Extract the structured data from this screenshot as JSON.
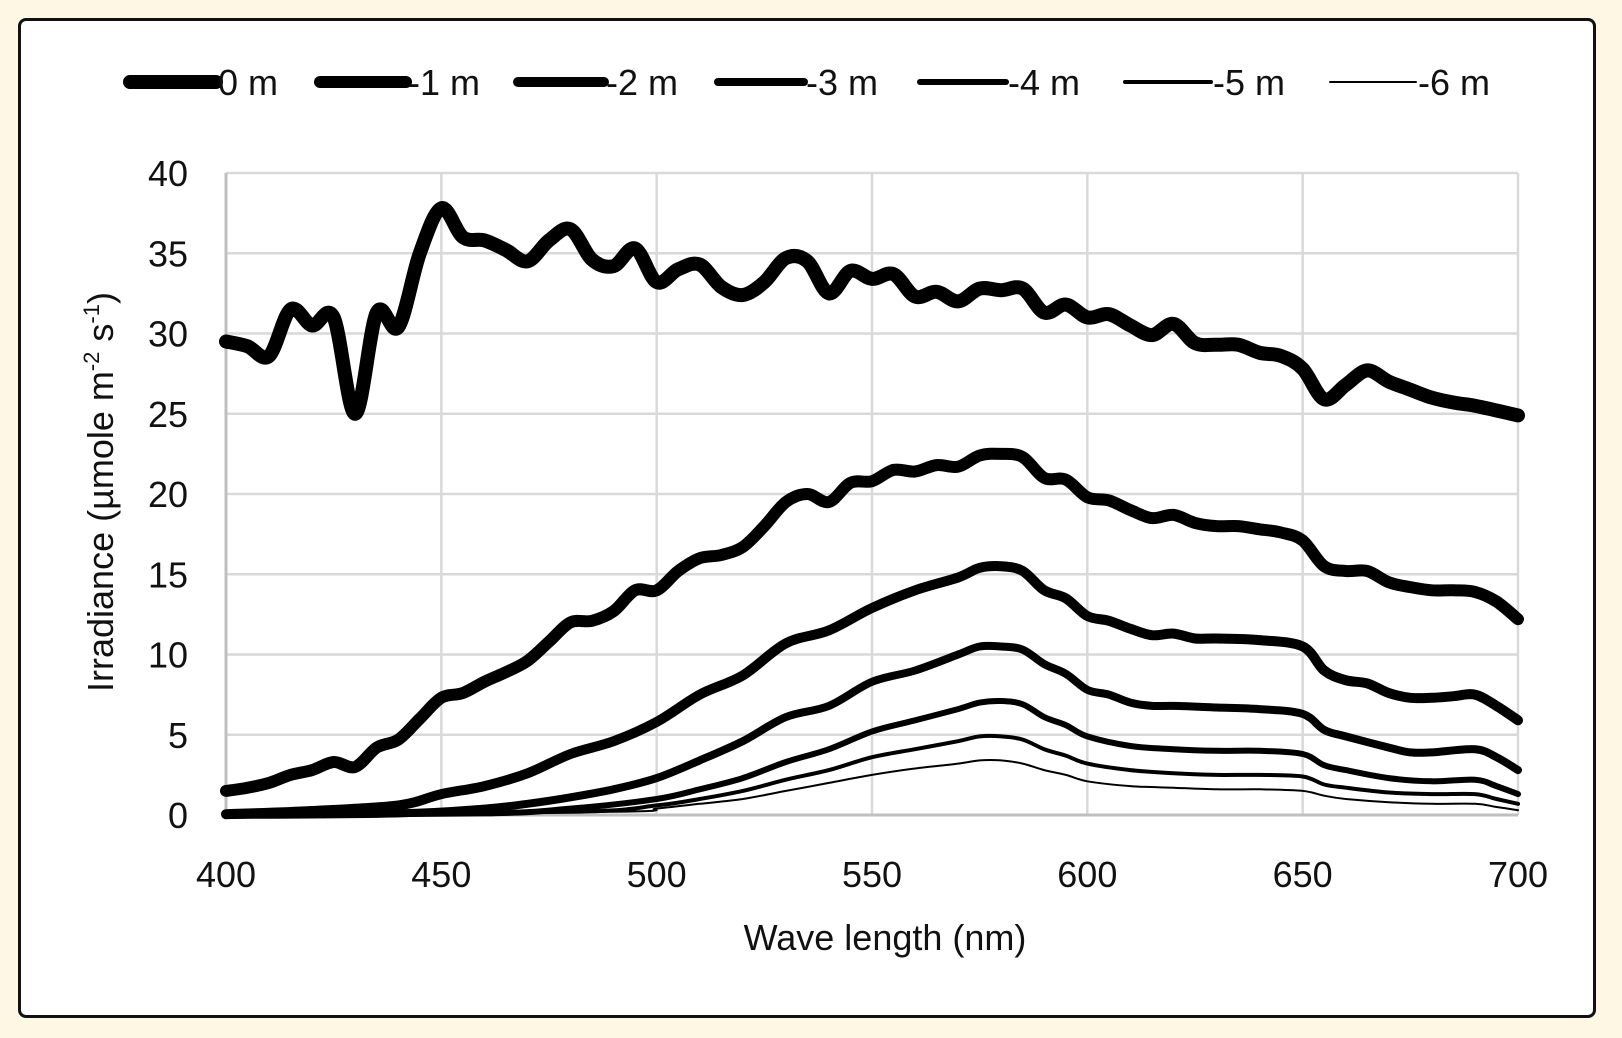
{
  "chart_data": {
    "type": "line",
    "title": "",
    "xlabel": "Wave length (nm)",
    "ylabel": "Irradiance (µmole m-2 s-1)",
    "ylabel_parts": {
      "main": "Irradiance (µmole m",
      "sup1": "-2",
      "mid": " s",
      "sup2": "-1",
      "end": ")"
    },
    "xlim": [
      400,
      700
    ],
    "ylim": [
      0,
      40
    ],
    "xticks": [
      400,
      450,
      500,
      550,
      600,
      650,
      700
    ],
    "yticks": [
      0,
      5,
      10,
      15,
      20,
      25,
      30,
      35,
      40
    ],
    "grid": true,
    "legend_position": "top",
    "line_color": "#000000",
    "grid_color": "#d9d9d9",
    "series": [
      {
        "name": "0 m",
        "points": [
          [
            400,
            29.5
          ],
          [
            405,
            29.2
          ],
          [
            410,
            28.6
          ],
          [
            415,
            31.5
          ],
          [
            420,
            30.5
          ],
          [
            425,
            31.0
          ],
          [
            430,
            25.0
          ],
          [
            435,
            31.3
          ],
          [
            440,
            30.4
          ],
          [
            445,
            35.0
          ],
          [
            450,
            37.8
          ],
          [
            455,
            36.0
          ],
          [
            460,
            35.8
          ],
          [
            465,
            35.2
          ],
          [
            470,
            34.5
          ],
          [
            475,
            35.8
          ],
          [
            480,
            36.5
          ],
          [
            485,
            34.6
          ],
          [
            490,
            34.2
          ],
          [
            495,
            35.3
          ],
          [
            500,
            33.2
          ],
          [
            505,
            34.0
          ],
          [
            510,
            34.3
          ],
          [
            515,
            32.9
          ],
          [
            520,
            32.4
          ],
          [
            525,
            33.2
          ],
          [
            530,
            34.7
          ],
          [
            535,
            34.5
          ],
          [
            540,
            32.5
          ],
          [
            545,
            33.9
          ],
          [
            550,
            33.4
          ],
          [
            555,
            33.7
          ],
          [
            560,
            32.3
          ],
          [
            565,
            32.6
          ],
          [
            570,
            32.0
          ],
          [
            575,
            32.8
          ],
          [
            580,
            32.7
          ],
          [
            585,
            32.8
          ],
          [
            590,
            31.3
          ],
          [
            595,
            31.8
          ],
          [
            600,
            31.0
          ],
          [
            605,
            31.2
          ],
          [
            610,
            30.5
          ],
          [
            615,
            29.9
          ],
          [
            620,
            30.6
          ],
          [
            625,
            29.4
          ],
          [
            630,
            29.3
          ],
          [
            635,
            29.3
          ],
          [
            640,
            28.8
          ],
          [
            645,
            28.6
          ],
          [
            650,
            27.8
          ],
          [
            655,
            25.9
          ],
          [
            660,
            26.8
          ],
          [
            665,
            27.7
          ],
          [
            670,
            27.0
          ],
          [
            675,
            26.5
          ],
          [
            680,
            26.0
          ],
          [
            685,
            25.7
          ],
          [
            690,
            25.5
          ],
          [
            695,
            25.2
          ],
          [
            700,
            24.9
          ]
        ]
      },
      {
        "name": "-1 m",
        "points": [
          [
            400,
            1.5
          ],
          [
            405,
            1.7
          ],
          [
            410,
            2.0
          ],
          [
            415,
            2.5
          ],
          [
            420,
            2.8
          ],
          [
            425,
            3.3
          ],
          [
            430,
            3.0
          ],
          [
            435,
            4.2
          ],
          [
            440,
            4.7
          ],
          [
            445,
            6.0
          ],
          [
            450,
            7.3
          ],
          [
            455,
            7.6
          ],
          [
            460,
            8.3
          ],
          [
            465,
            8.9
          ],
          [
            470,
            9.6
          ],
          [
            475,
            10.8
          ],
          [
            480,
            12.0
          ],
          [
            485,
            12.1
          ],
          [
            490,
            12.7
          ],
          [
            495,
            14.0
          ],
          [
            500,
            14.0
          ],
          [
            505,
            15.2
          ],
          [
            510,
            16.0
          ],
          [
            515,
            16.2
          ],
          [
            520,
            16.7
          ],
          [
            525,
            18.0
          ],
          [
            530,
            19.5
          ],
          [
            535,
            20.0
          ],
          [
            540,
            19.5
          ],
          [
            545,
            20.7
          ],
          [
            550,
            20.8
          ],
          [
            555,
            21.5
          ],
          [
            560,
            21.4
          ],
          [
            565,
            21.8
          ],
          [
            570,
            21.7
          ],
          [
            575,
            22.4
          ],
          [
            580,
            22.5
          ],
          [
            585,
            22.3
          ],
          [
            590,
            21.0
          ],
          [
            595,
            20.9
          ],
          [
            600,
            19.8
          ],
          [
            605,
            19.6
          ],
          [
            610,
            19.0
          ],
          [
            615,
            18.5
          ],
          [
            620,
            18.7
          ],
          [
            625,
            18.2
          ],
          [
            630,
            18.0
          ],
          [
            635,
            18.0
          ],
          [
            640,
            17.8
          ],
          [
            645,
            17.6
          ],
          [
            650,
            17.1
          ],
          [
            655,
            15.5
          ],
          [
            660,
            15.2
          ],
          [
            665,
            15.2
          ],
          [
            670,
            14.5
          ],
          [
            675,
            14.2
          ],
          [
            680,
            14.0
          ],
          [
            685,
            14.0
          ],
          [
            690,
            13.9
          ],
          [
            695,
            13.3
          ],
          [
            700,
            12.2
          ]
        ]
      },
      {
        "name": "-2 m",
        "points": [
          [
            400,
            0.05
          ],
          [
            420,
            0.25
          ],
          [
            440,
            0.6
          ],
          [
            450,
            1.3
          ],
          [
            460,
            1.8
          ],
          [
            470,
            2.6
          ],
          [
            480,
            3.8
          ],
          [
            490,
            4.6
          ],
          [
            500,
            5.8
          ],
          [
            510,
            7.5
          ],
          [
            520,
            8.7
          ],
          [
            530,
            10.7
          ],
          [
            540,
            11.5
          ],
          [
            550,
            12.9
          ],
          [
            560,
            14.0
          ],
          [
            570,
            14.8
          ],
          [
            575,
            15.4
          ],
          [
            580,
            15.5
          ],
          [
            585,
            15.2
          ],
          [
            590,
            14.0
          ],
          [
            595,
            13.5
          ],
          [
            600,
            12.4
          ],
          [
            605,
            12.1
          ],
          [
            610,
            11.6
          ],
          [
            615,
            11.2
          ],
          [
            620,
            11.3
          ],
          [
            625,
            11.0
          ],
          [
            630,
            11.0
          ],
          [
            640,
            10.9
          ],
          [
            650,
            10.5
          ],
          [
            655,
            9.0
          ],
          [
            660,
            8.4
          ],
          [
            665,
            8.2
          ],
          [
            670,
            7.6
          ],
          [
            675,
            7.3
          ],
          [
            680,
            7.3
          ],
          [
            685,
            7.4
          ],
          [
            690,
            7.5
          ],
          [
            695,
            6.8
          ],
          [
            700,
            5.9
          ]
        ]
      },
      {
        "name": "-3 m",
        "points": [
          [
            400,
            0.0
          ],
          [
            440,
            0.1
          ],
          [
            460,
            0.4
          ],
          [
            470,
            0.7
          ],
          [
            480,
            1.1
          ],
          [
            490,
            1.6
          ],
          [
            500,
            2.3
          ],
          [
            510,
            3.4
          ],
          [
            520,
            4.6
          ],
          [
            530,
            6.1
          ],
          [
            540,
            6.8
          ],
          [
            550,
            8.3
          ],
          [
            560,
            9.0
          ],
          [
            570,
            10.0
          ],
          [
            575,
            10.5
          ],
          [
            580,
            10.5
          ],
          [
            585,
            10.3
          ],
          [
            590,
            9.4
          ],
          [
            595,
            8.8
          ],
          [
            600,
            7.8
          ],
          [
            605,
            7.5
          ],
          [
            610,
            7.0
          ],
          [
            615,
            6.8
          ],
          [
            620,
            6.8
          ],
          [
            630,
            6.7
          ],
          [
            640,
            6.6
          ],
          [
            650,
            6.3
          ],
          [
            655,
            5.3
          ],
          [
            660,
            4.9
          ],
          [
            670,
            4.2
          ],
          [
            675,
            3.9
          ],
          [
            680,
            3.9
          ],
          [
            690,
            4.1
          ],
          [
            695,
            3.6
          ],
          [
            700,
            2.8
          ]
        ]
      },
      {
        "name": "-4 m",
        "points": [
          [
            400,
            0.0
          ],
          [
            460,
            0.1
          ],
          [
            480,
            0.4
          ],
          [
            500,
            1.0
          ],
          [
            510,
            1.6
          ],
          [
            520,
            2.3
          ],
          [
            530,
            3.3
          ],
          [
            540,
            4.1
          ],
          [
            550,
            5.2
          ],
          [
            560,
            5.9
          ],
          [
            570,
            6.6
          ],
          [
            575,
            7.0
          ],
          [
            580,
            7.1
          ],
          [
            585,
            6.9
          ],
          [
            590,
            6.1
          ],
          [
            595,
            5.6
          ],
          [
            600,
            4.9
          ],
          [
            610,
            4.3
          ],
          [
            620,
            4.1
          ],
          [
            630,
            4.0
          ],
          [
            640,
            4.0
          ],
          [
            650,
            3.8
          ],
          [
            655,
            3.1
          ],
          [
            660,
            2.8
          ],
          [
            670,
            2.3
          ],
          [
            680,
            2.1
          ],
          [
            690,
            2.2
          ],
          [
            695,
            1.8
          ],
          [
            700,
            1.3
          ]
        ]
      },
      {
        "name": "-5 m",
        "points": [
          [
            400,
            0.0
          ],
          [
            480,
            0.2
          ],
          [
            500,
            0.6
          ],
          [
            510,
            1.0
          ],
          [
            520,
            1.5
          ],
          [
            530,
            2.2
          ],
          [
            540,
            2.8
          ],
          [
            550,
            3.6
          ],
          [
            560,
            4.1
          ],
          [
            570,
            4.6
          ],
          [
            575,
            4.9
          ],
          [
            580,
            4.9
          ],
          [
            585,
            4.7
          ],
          [
            590,
            4.1
          ],
          [
            595,
            3.7
          ],
          [
            600,
            3.2
          ],
          [
            610,
            2.8
          ],
          [
            620,
            2.6
          ],
          [
            630,
            2.5
          ],
          [
            640,
            2.5
          ],
          [
            650,
            2.4
          ],
          [
            655,
            1.9
          ],
          [
            660,
            1.7
          ],
          [
            670,
            1.4
          ],
          [
            680,
            1.3
          ],
          [
            690,
            1.3
          ],
          [
            695,
            1.0
          ],
          [
            700,
            0.7
          ]
        ]
      },
      {
        "name": "-6 m",
        "points": [
          [
            400,
            0.0
          ],
          [
            490,
            0.2
          ],
          [
            500,
            0.4
          ],
          [
            510,
            0.7
          ],
          [
            520,
            1.0
          ],
          [
            530,
            1.5
          ],
          [
            540,
            2.0
          ],
          [
            550,
            2.5
          ],
          [
            560,
            2.9
          ],
          [
            570,
            3.2
          ],
          [
            575,
            3.4
          ],
          [
            580,
            3.4
          ],
          [
            585,
            3.2
          ],
          [
            590,
            2.8
          ],
          [
            595,
            2.5
          ],
          [
            600,
            2.1
          ],
          [
            610,
            1.8
          ],
          [
            620,
            1.7
          ],
          [
            630,
            1.6
          ],
          [
            640,
            1.6
          ],
          [
            650,
            1.5
          ],
          [
            655,
            1.2
          ],
          [
            660,
            1.0
          ],
          [
            670,
            0.8
          ],
          [
            680,
            0.7
          ],
          [
            690,
            0.7
          ],
          [
            695,
            0.5
          ],
          [
            700,
            0.3
          ]
        ]
      }
    ]
  }
}
